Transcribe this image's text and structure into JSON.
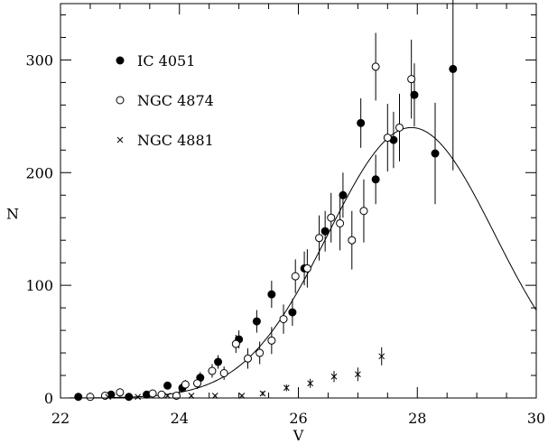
{
  "chart_data": {
    "type": "scatter",
    "xlabel": "V",
    "ylabel": "N",
    "xlim": [
      22,
      30
    ],
    "ylim": [
      0,
      350
    ],
    "x_ticks": [
      22,
      24,
      26,
      28,
      30
    ],
    "x_tick_labels": [
      "22",
      "24",
      "26",
      "28",
      "30"
    ],
    "y_ticks": [
      0,
      100,
      200,
      300
    ],
    "y_tick_labels": [
      "0",
      "100",
      "200",
      "300"
    ],
    "x_minor_step": 0.5,
    "y_minor_step": 20,
    "legend_placement": "top-left",
    "model_curve": {
      "form": "gaussian",
      "peak_x": 27.9,
      "peak_y": 240,
      "sigma": 1.4
    },
    "series": [
      {
        "name": "IC 4051",
        "marker": "filled-circle",
        "points": [
          {
            "x": 22.3,
            "y": 1,
            "err": 1
          },
          {
            "x": 22.85,
            "y": 3,
            "err": 2
          },
          {
            "x": 23.15,
            "y": 1,
            "err": 1
          },
          {
            "x": 23.45,
            "y": 3,
            "err": 2
          },
          {
            "x": 23.8,
            "y": 11,
            "err": 3
          },
          {
            "x": 24.05,
            "y": 9,
            "err": 4
          },
          {
            "x": 24.35,
            "y": 18,
            "err": 5
          },
          {
            "x": 24.65,
            "y": 32,
            "err": 6
          },
          {
            "x": 25.0,
            "y": 52,
            "err": 8
          },
          {
            "x": 25.3,
            "y": 68,
            "err": 10
          },
          {
            "x": 25.55,
            "y": 92,
            "err": 12
          },
          {
            "x": 25.9,
            "y": 76,
            "err": 12
          },
          {
            "x": 26.1,
            "y": 115,
            "err": 15
          },
          {
            "x": 26.45,
            "y": 148,
            "err": 18
          },
          {
            "x": 26.75,
            "y": 180,
            "err": 20
          },
          {
            "x": 27.05,
            "y": 244,
            "err": 22
          },
          {
            "x": 27.3,
            "y": 194,
            "err": 22
          },
          {
            "x": 27.6,
            "y": 229,
            "err": 25
          },
          {
            "x": 27.95,
            "y": 269,
            "err": 28
          },
          {
            "x": 28.3,
            "y": 217,
            "err": 45
          },
          {
            "x": 28.6,
            "y": 292,
            "err": 90
          }
        ]
      },
      {
        "name": "NGC 4874",
        "marker": "open-circle",
        "points": [
          {
            "x": 22.5,
            "y": 1,
            "err": 1
          },
          {
            "x": 22.75,
            "y": 2,
            "err": 1
          },
          {
            "x": 23.0,
            "y": 5,
            "err": 2
          },
          {
            "x": 23.55,
            "y": 4,
            "err": 2
          },
          {
            "x": 23.7,
            "y": 3,
            "err": 2
          },
          {
            "x": 23.95,
            "y": 2,
            "err": 2
          },
          {
            "x": 24.1,
            "y": 12,
            "err": 4
          },
          {
            "x": 24.3,
            "y": 13,
            "err": 5
          },
          {
            "x": 24.55,
            "y": 24,
            "err": 6
          },
          {
            "x": 24.75,
            "y": 22,
            "err": 6
          },
          {
            "x": 24.95,
            "y": 48,
            "err": 8
          },
          {
            "x": 25.15,
            "y": 35,
            "err": 9
          },
          {
            "x": 25.35,
            "y": 40,
            "err": 10
          },
          {
            "x": 25.55,
            "y": 51,
            "err": 12
          },
          {
            "x": 25.75,
            "y": 70,
            "err": 13
          },
          {
            "x": 25.95,
            "y": 108,
            "err": 15
          },
          {
            "x": 26.15,
            "y": 115,
            "err": 17
          },
          {
            "x": 26.35,
            "y": 142,
            "err": 20
          },
          {
            "x": 26.55,
            "y": 160,
            "err": 22
          },
          {
            "x": 26.7,
            "y": 155,
            "err": 24
          },
          {
            "x": 26.9,
            "y": 140,
            "err": 26
          },
          {
            "x": 27.1,
            "y": 166,
            "err": 28
          },
          {
            "x": 27.3,
            "y": 294,
            "err": 30
          },
          {
            "x": 27.5,
            "y": 231,
            "err": 30
          },
          {
            "x": 27.7,
            "y": 240,
            "err": 30
          },
          {
            "x": 27.9,
            "y": 283,
            "err": 35
          }
        ]
      },
      {
        "name": "NGC 4881",
        "marker": "cross",
        "points": [
          {
            "x": 22.8,
            "y": 1,
            "err": 0
          },
          {
            "x": 23.3,
            "y": 1,
            "err": 0
          },
          {
            "x": 23.8,
            "y": 2,
            "err": 1
          },
          {
            "x": 24.2,
            "y": 2,
            "err": 1
          },
          {
            "x": 24.6,
            "y": 2,
            "err": 1
          },
          {
            "x": 25.05,
            "y": 2,
            "err": 1
          },
          {
            "x": 25.4,
            "y": 4,
            "err": 2
          },
          {
            "x": 25.8,
            "y": 9,
            "err": 3
          },
          {
            "x": 26.2,
            "y": 13,
            "err": 4
          },
          {
            "x": 26.6,
            "y": 19,
            "err": 5
          },
          {
            "x": 27.0,
            "y": 21,
            "err": 6
          },
          {
            "x": 27.4,
            "y": 37,
            "err": 8
          }
        ]
      }
    ]
  }
}
